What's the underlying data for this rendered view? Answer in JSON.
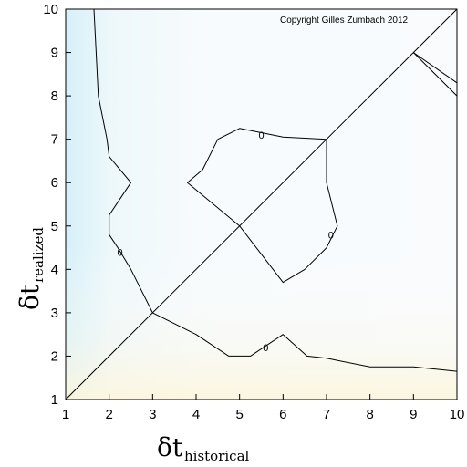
{
  "chart_data": {
    "type": "contour",
    "copyright": "Copyright Gilles Zumbach 2012",
    "xlabel": {
      "symbol": "δt",
      "subscript": "historical"
    },
    "ylabel": {
      "symbol": "δt",
      "subscript": "realized"
    },
    "xlim": [
      1,
      10
    ],
    "ylim": [
      1,
      10
    ],
    "xticks": [
      "1",
      "2",
      "3",
      "4",
      "5",
      "6",
      "7",
      "8",
      "9",
      "10"
    ],
    "yticks": [
      "1",
      "2",
      "3",
      "4",
      "5",
      "6",
      "7",
      "8",
      "9",
      "10"
    ],
    "diagonal": [
      [
        1,
        1
      ],
      [
        10,
        10
      ]
    ],
    "contours": [
      {
        "level": "0",
        "points": [
          [
            1.65,
            10
          ],
          [
            1.75,
            8
          ],
          [
            1.95,
            7
          ],
          [
            2.0,
            6.6
          ],
          [
            2.5,
            6.0
          ],
          [
            2.0,
            5.25
          ],
          [
            2.0,
            4.8
          ],
          [
            2.2,
            4.5
          ],
          [
            2.5,
            4.0
          ],
          [
            3.0,
            3.0
          ],
          [
            4.0,
            2.5
          ],
          [
            4.75,
            2.0
          ],
          [
            5.25,
            2.0
          ],
          [
            6.0,
            2.5
          ],
          [
            6.55,
            2.0
          ],
          [
            7.0,
            1.95
          ],
          [
            8.0,
            1.75
          ],
          [
            9.0,
            1.75
          ],
          [
            10.0,
            1.65
          ]
        ]
      },
      {
        "level": "0",
        "points": [
          [
            5.0,
            5.0
          ],
          [
            3.8,
            6.0
          ],
          [
            4.15,
            6.3
          ],
          [
            4.5,
            7.0
          ],
          [
            5.0,
            7.25
          ],
          [
            5.5,
            7.15
          ],
          [
            6.0,
            7.05
          ],
          [
            7.0,
            7.0
          ],
          [
            7.0,
            6.0
          ],
          [
            7.25,
            5.0
          ],
          [
            7.0,
            4.5
          ],
          [
            6.5,
            4.0
          ],
          [
            6.0,
            3.7
          ],
          [
            5.0,
            5.0
          ]
        ]
      },
      {
        "level": "0",
        "points": [
          [
            9.0,
            9.0
          ],
          [
            10.0,
            8.3
          ]
        ]
      },
      {
        "level": "0",
        "points": [
          [
            9.0,
            9.0
          ],
          [
            10.0,
            8.0
          ]
        ]
      }
    ],
    "contour_labels": [
      {
        "text": "0",
        "x": 2.25,
        "y": 4.4
      },
      {
        "text": "0",
        "x": 5.5,
        "y": 7.1
      },
      {
        "text": "0",
        "x": 7.1,
        "y": 4.8
      },
      {
        "text": "0",
        "x": 5.6,
        "y": 2.2
      }
    ]
  }
}
